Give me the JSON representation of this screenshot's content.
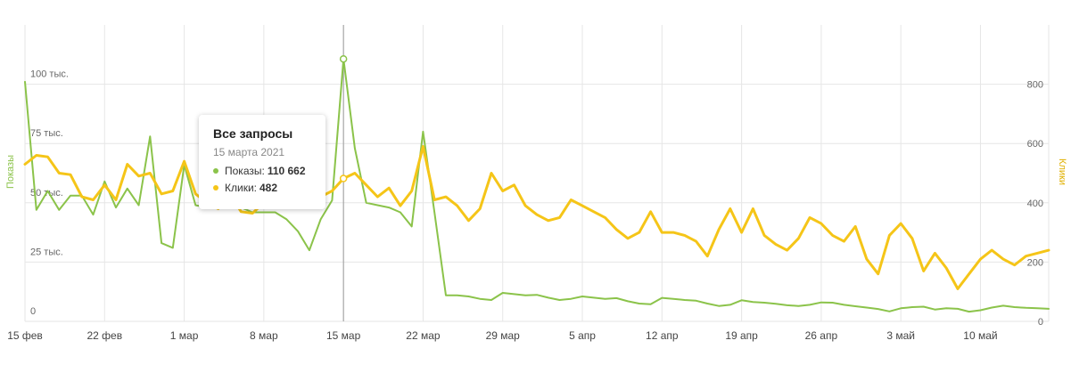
{
  "chart_data": {
    "type": "line",
    "x": [
      "2021-02-15",
      "2021-02-16",
      "2021-02-17",
      "2021-02-18",
      "2021-02-19",
      "2021-02-20",
      "2021-02-21",
      "2021-02-22",
      "2021-02-23",
      "2021-02-24",
      "2021-02-25",
      "2021-02-26",
      "2021-02-27",
      "2021-02-28",
      "2021-03-01",
      "2021-03-02",
      "2021-03-03",
      "2021-03-04",
      "2021-03-05",
      "2021-03-06",
      "2021-03-07",
      "2021-03-08",
      "2021-03-09",
      "2021-03-10",
      "2021-03-11",
      "2021-03-12",
      "2021-03-13",
      "2021-03-14",
      "2021-03-15",
      "2021-03-16",
      "2021-03-17",
      "2021-03-18",
      "2021-03-19",
      "2021-03-20",
      "2021-03-21",
      "2021-03-22",
      "2021-03-23",
      "2021-03-24",
      "2021-03-25",
      "2021-03-26",
      "2021-03-27",
      "2021-03-28",
      "2021-03-29",
      "2021-03-30",
      "2021-03-31",
      "2021-04-01",
      "2021-04-02",
      "2021-04-03",
      "2021-04-04",
      "2021-04-05",
      "2021-04-06",
      "2021-04-07",
      "2021-04-08",
      "2021-04-09",
      "2021-04-10",
      "2021-04-11",
      "2021-04-12",
      "2021-04-13",
      "2021-04-14",
      "2021-04-15",
      "2021-04-16",
      "2021-04-17",
      "2021-04-18",
      "2021-04-19",
      "2021-04-20",
      "2021-04-21",
      "2021-04-22",
      "2021-04-23",
      "2021-04-24",
      "2021-04-25",
      "2021-04-26",
      "2021-04-27",
      "2021-04-28",
      "2021-04-29",
      "2021-04-30",
      "2021-05-01",
      "2021-05-02",
      "2021-05-03",
      "2021-05-04",
      "2021-05-05",
      "2021-05-06",
      "2021-05-07",
      "2021-05-08",
      "2021-05-09",
      "2021-05-10",
      "2021-05-11",
      "2021-05-12",
      "2021-05-13",
      "2021-05-14",
      "2021-05-15",
      "2021-05-16"
    ],
    "x_ticks": [
      {
        "date": "2021-02-15",
        "label": "15 фев"
      },
      {
        "date": "2021-02-22",
        "label": "22 фев"
      },
      {
        "date": "2021-03-01",
        "label": "1 мар"
      },
      {
        "date": "2021-03-08",
        "label": "8 мар"
      },
      {
        "date": "2021-03-15",
        "label": "15 мар"
      },
      {
        "date": "2021-03-22",
        "label": "22 мар"
      },
      {
        "date": "2021-03-29",
        "label": "29 мар"
      },
      {
        "date": "2021-04-05",
        "label": "5 апр"
      },
      {
        "date": "2021-04-12",
        "label": "12 апр"
      },
      {
        "date": "2021-04-19",
        "label": "19 апр"
      },
      {
        "date": "2021-04-26",
        "label": "26 апр"
      },
      {
        "date": "2021-05-03",
        "label": "3 май"
      },
      {
        "date": "2021-05-10",
        "label": "10 май"
      }
    ],
    "y_left": {
      "label": "Показы",
      "range": [
        0,
        125000
      ],
      "ticks": [
        {
          "value": 0,
          "label": "0"
        },
        {
          "value": 25000,
          "label": "25 тыс."
        },
        {
          "value": 50000,
          "label": "50 тыс."
        },
        {
          "value": 75000,
          "label": "75 тыс."
        },
        {
          "value": 100000,
          "label": "100 тыс."
        }
      ]
    },
    "y_right": {
      "label": "Клики",
      "range": [
        0,
        1000
      ],
      "ticks": [
        {
          "value": 0,
          "label": "0"
        },
        {
          "value": 200,
          "label": "200"
        },
        {
          "value": 400,
          "label": "400"
        },
        {
          "value": 600,
          "label": "600"
        },
        {
          "value": 800,
          "label": "800"
        }
      ]
    },
    "grid": true,
    "series": [
      {
        "name": "Показы",
        "axis": "left",
        "color": "#8bc34a",
        "values": [
          101000,
          47000,
          55000,
          47000,
          53000,
          53000,
          45000,
          59000,
          48000,
          56000,
          49000,
          78000,
          33000,
          31000,
          66000,
          49000,
          48000,
          48000,
          50000,
          48000,
          46000,
          46000,
          46000,
          43000,
          38000,
          30000,
          43000,
          51000,
          110662,
          73000,
          50000,
          49000,
          48000,
          46000,
          40000,
          80000,
          46000,
          11000,
          11000,
          10500,
          9500,
          9000,
          12000,
          11500,
          11000,
          11200,
          10000,
          9000,
          9500,
          10500,
          10000,
          9500,
          9800,
          8500,
          7500,
          7200,
          9900,
          9500,
          9000,
          8700,
          7500,
          6500,
          7000,
          8900,
          8200,
          7900,
          7400,
          6800,
          6500,
          7000,
          8000,
          7900,
          7000,
          6400,
          5800,
          5200,
          4200,
          5500,
          6000,
          6200,
          5000,
          5500,
          5300,
          4100,
          4700,
          5800,
          6600,
          6000,
          5700,
          5500,
          5300
        ],
        "labels": {
          "tooltip": "Показы:"
        }
      },
      {
        "name": "Клики",
        "axis": "right",
        "color": "#f5c518",
        "values": [
          530,
          560,
          555,
          500,
          495,
          420,
          410,
          460,
          410,
          530,
          490,
          500,
          430,
          440,
          540,
          430,
          400,
          380,
          430,
          370,
          365,
          400,
          390,
          410,
          400,
          410,
          420,
          440,
          482,
          500,
          460,
          420,
          450,
          390,
          440,
          590,
          410,
          420,
          390,
          340,
          380,
          500,
          440,
          460,
          390,
          360,
          340,
          350,
          410,
          390,
          370,
          350,
          310,
          280,
          300,
          370,
          300,
          300,
          290,
          270,
          220,
          310,
          380,
          300,
          380,
          290,
          260,
          240,
          280,
          350,
          330,
          290,
          270,
          320,
          210,
          160,
          290,
          330,
          280,
          170,
          230,
          180,
          110,
          160,
          210,
          240,
          210,
          190,
          220,
          230,
          240
        ],
        "labels": {
          "tooltip": "Клики:"
        }
      }
    ],
    "cursor_date": "2021-03-15"
  },
  "tooltip": {
    "title": "Все запросы",
    "date": "15 марта 2021",
    "impressions_label": "Показы:",
    "impressions_value": "110 662",
    "clicks_label": "Клики:",
    "clicks_value": "482",
    "impressions_color": "#8bc34a",
    "clicks_color": "#f5c518"
  }
}
